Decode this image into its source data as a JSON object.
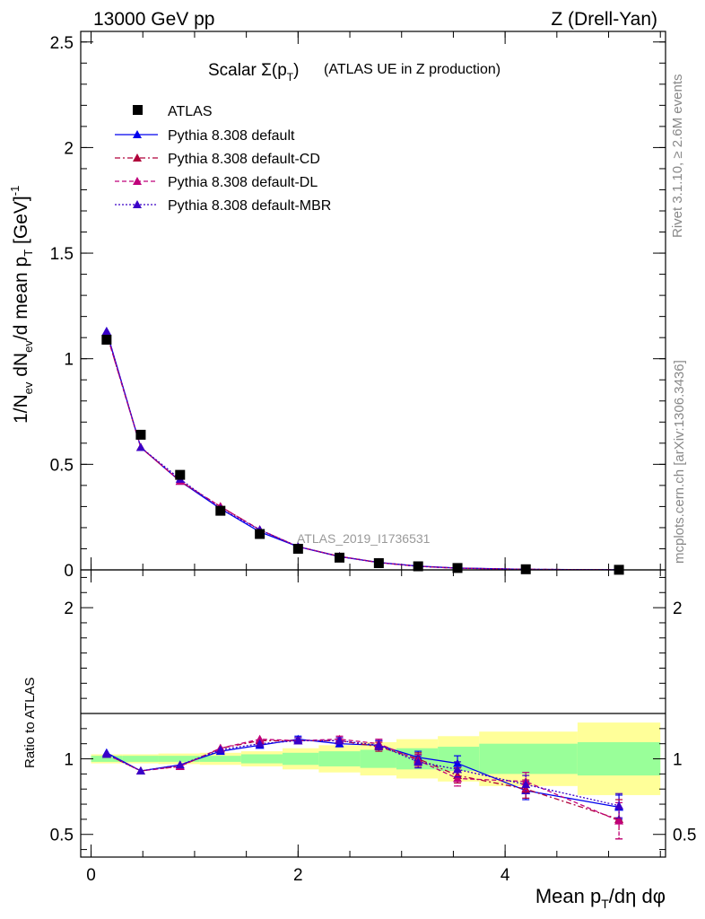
{
  "header": {
    "left": "13000 GeV pp",
    "right": "Z (Drell-Yan)"
  },
  "side": {
    "rivet": "Rivet 3.1.10, ≥ 2.6M events",
    "mcplots": "mcplots.cern.ch [arXiv:1306.3436]"
  },
  "chart_data": {
    "type": "scatter",
    "title_main": "Scalar Σ(p",
    "title_sub": "T",
    "title_close": ")",
    "title_suffix": "(ATLAS UE in Z production)",
    "watermark": "ATLAS_2019_I1736531",
    "ylabel_main": "1/N",
    "ylabel_sub1": "ev",
    "ylabel_mid": " dN",
    "ylabel_sub2": "ev",
    "ylabel_rest": "/d mean p",
    "ylabel_sub3": "T",
    "ylabel_unit": " [GeV]",
    "ylabel_sup": "-1",
    "ratio_ylabel": "Ratio to ATLAS",
    "xlabel_main": "Mean p",
    "xlabel_sub": "T",
    "xlabel_rest": "/dη dφ",
    "xlim": [
      -0.1,
      5.55
    ],
    "ylim": [
      0,
      2.55
    ],
    "ratio_ylim": [
      0.35,
      2.25
    ],
    "x_ticks": [
      "0",
      "2",
      "4"
    ],
    "y_ticks": [
      "0",
      "0.5",
      "1",
      "1.5",
      "2",
      "2.5"
    ],
    "ratio_y_ticks": [
      "0.5",
      "1",
      "2"
    ],
    "bin_edges": [
      0,
      0.3,
      0.65,
      1.05,
      1.45,
      1.85,
      2.2,
      2.6,
      2.95,
      3.35,
      3.75,
      4.7,
      5.5
    ],
    "x": [
      0.15,
      0.48,
      0.86,
      1.25,
      1.63,
      2.0,
      2.4,
      2.78,
      3.16,
      3.54,
      4.2,
      5.1
    ],
    "data": {
      "name": "ATLAS",
      "values": [
        1.09,
        0.64,
        0.45,
        0.28,
        0.17,
        0.1,
        0.058,
        0.032,
        0.017,
        0.009,
        0.003,
        0.0005
      ],
      "band_inner": [
        0.02,
        0.02,
        0.02,
        0.02,
        0.03,
        0.04,
        0.05,
        0.06,
        0.07,
        0.08,
        0.1,
        0.11
      ],
      "band_outer": [
        0.03,
        0.03,
        0.035,
        0.04,
        0.05,
        0.07,
        0.09,
        0.11,
        0.13,
        0.15,
        0.18,
        0.24
      ]
    },
    "series": [
      {
        "name": "Pythia 8.308 default",
        "color": "#0000ee",
        "dash": "",
        "values": [
          1.13,
          0.58,
          0.42,
          0.29,
          0.18,
          0.11,
          0.063,
          0.035,
          0.018,
          0.0087,
          0.0025,
          0.00034
        ],
        "ratio": [
          1.04,
          0.92,
          0.96,
          1.05,
          1.09,
          1.13,
          1.1,
          1.09,
          1.01,
          0.97,
          0.79,
          0.68
        ],
        "ratio_err": [
          0.01,
          0.01,
          0.01,
          0.01,
          0.01,
          0.02,
          0.02,
          0.03,
          0.04,
          0.05,
          0.06,
          0.08
        ]
      },
      {
        "name": "Pythia 8.308 default-CD",
        "color": "#b0003a",
        "dash": "6,3,2,3",
        "values": [
          1.12,
          0.58,
          0.42,
          0.3,
          0.19,
          0.11,
          0.064,
          0.034,
          0.017,
          0.008,
          0.0026,
          0.0003
        ],
        "ratio": [
          1.03,
          0.92,
          0.95,
          1.07,
          1.12,
          1.12,
          1.12,
          1.08,
          1.0,
          0.89,
          0.8,
          0.6
        ],
        "ratio_err": [
          0.01,
          0.01,
          0.01,
          0.01,
          0.01,
          0.02,
          0.02,
          0.03,
          0.04,
          0.05,
          0.06,
          0.13
        ]
      },
      {
        "name": "Pythia 8.308 default-DL",
        "color": "#c0007a",
        "dash": "5,3",
        "values": [
          1.12,
          0.58,
          0.42,
          0.3,
          0.19,
          0.11,
          0.064,
          0.035,
          0.017,
          0.0079,
          0.0025,
          0.0003
        ],
        "ratio": [
          1.03,
          0.92,
          0.95,
          1.07,
          1.13,
          1.12,
          1.13,
          1.1,
          0.99,
          0.87,
          0.85,
          0.59
        ],
        "ratio_err": [
          0.01,
          0.01,
          0.01,
          0.01,
          0.01,
          0.02,
          0.02,
          0.03,
          0.04,
          0.05,
          0.06,
          0.12
        ]
      },
      {
        "name": "Pythia 8.308 default-MBR",
        "color": "#3a00c8",
        "dash": "2,2",
        "values": [
          1.13,
          0.58,
          0.43,
          0.29,
          0.19,
          0.11,
          0.063,
          0.035,
          0.017,
          0.0083,
          0.0025,
          0.00035
        ],
        "ratio": [
          1.03,
          0.92,
          0.96,
          1.06,
          1.1,
          1.12,
          1.12,
          1.09,
          0.98,
          0.93,
          0.83,
          0.69
        ],
        "ratio_err": [
          0.01,
          0.01,
          0.01,
          0.01,
          0.01,
          0.02,
          0.02,
          0.03,
          0.04,
          0.05,
          0.06,
          0.08
        ]
      }
    ]
  }
}
